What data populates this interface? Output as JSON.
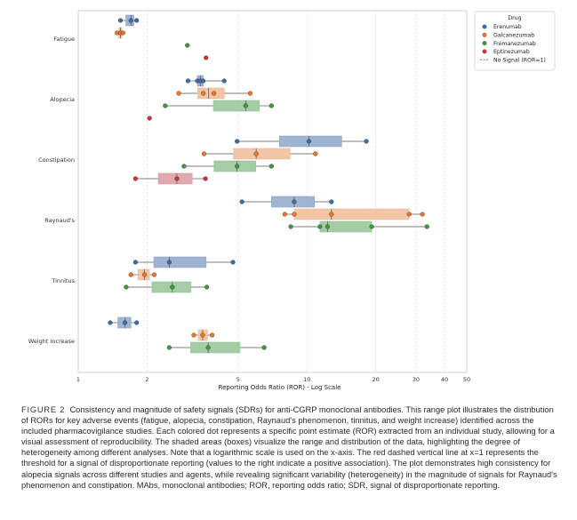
{
  "caption": {
    "label": "FIGURE 2",
    "text": "Consistency and magnitude of safety signals (SDRs) for anti-CGRP monoclonal antibodies. This range plot illustrates the distribution of RORs for key adverse events (fatigue, alopecia, constipation, Raynaud's phenomenon, tinnitus, and weight increase) identified across the included pharmacovigilance studies. Each colored dot represents a specific point estimate (ROR) extracted from an individual study, allowing for a visual assessment of reproducibility. The shaded areas (boxes) visualize the range and distribution of the data, highlighting the degree of heterogeneity among different analyses. Note that a logarithmic scale is used on the x-axis. The red dashed vertical line at x=1 represents the threshold for a signal of disproportionate reporting (values to the right indicate a positive association). The plot demonstrates high consistency for alopecia signals across different studies and agents, while revealing significant variability (heterogeneity) in the magnitude of signals for Raynaud's phenomenon and constipation. MAbs, monoclonal antibodies; ROR, reporting odds ratio; SDR, signal of disproportionate reporting."
  },
  "chart_data": {
    "type": "range-box-strip",
    "xscale": "log",
    "xlim": [
      1,
      50
    ],
    "xticks": [
      1,
      2,
      5,
      10,
      20,
      30,
      40,
      50
    ],
    "xlabel": "Reporting Odds Ratio (ROR) - Log Scale",
    "legend": {
      "title": "Drug",
      "position": "top-right",
      "entries": [
        {
          "label": "Erenumab",
          "color": "#3b6fa8"
        },
        {
          "label": "Galcanezumab",
          "color": "#e9782a"
        },
        {
          "label": "Fremanezumab",
          "color": "#3f9a3f"
        },
        {
          "label": "Eptinezumab",
          "color": "#d13434"
        },
        {
          "label": "No Signal (ROR=1)",
          "color": "#d13434",
          "style": "dashed"
        }
      ]
    },
    "drug_colors": {
      "Erenumab": {
        "point": "#3b6fa8",
        "box": "#8ea7c8"
      },
      "Galcanezumab": {
        "point": "#e9782a",
        "box": "#eebb97"
      },
      "Fremanezumab": {
        "point": "#3f9a3f",
        "box": "#94c497"
      },
      "Eptinezumab": {
        "point": "#d13434",
        "box": "#d99aa1"
      }
    },
    "categories": [
      "Fatigue",
      "Alopecia",
      "Constipation",
      "Raynaud's",
      "Tinnitus",
      "Weight Increase"
    ],
    "groups": [
      {
        "category": "Fatigue",
        "drug": "Erenumab",
        "values": [
          1.53,
          1.7,
          1.8
        ]
      },
      {
        "category": "Fatigue",
        "drug": "Galcanezumab",
        "values": [
          1.48,
          1.53,
          1.57
        ]
      },
      {
        "category": "Fatigue",
        "drug": "Fremanezumab",
        "values": [
          3.0
        ]
      },
      {
        "category": "Fatigue",
        "drug": "Eptinezumab",
        "values": [
          3.62
        ]
      },
      {
        "category": "Alopecia",
        "drug": "Erenumab",
        "values": [
          3.02,
          3.32,
          3.42,
          3.52,
          4.35
        ]
      },
      {
        "category": "Alopecia",
        "drug": "Galcanezumab",
        "values": [
          2.75,
          3.52,
          3.92,
          5.65
        ]
      },
      {
        "category": "Alopecia",
        "drug": "Fremanezumab",
        "values": [
          2.4,
          5.4,
          7.0
        ]
      },
      {
        "category": "Alopecia",
        "drug": "Eptinezumab",
        "values": [
          2.05
        ]
      },
      {
        "category": "Constipation",
        "drug": "Erenumab",
        "values": [
          4.95,
          10.2,
          18.2
        ]
      },
      {
        "category": "Constipation",
        "drug": "Galcanezumab",
        "values": [
          3.55,
          6.0,
          10.9
        ]
      },
      {
        "category": "Constipation",
        "drug": "Fremanezumab",
        "values": [
          2.9,
          4.95,
          7.0
        ]
      },
      {
        "category": "Constipation",
        "drug": "Eptinezumab",
        "values": [
          1.78,
          2.7,
          3.6
        ]
      },
      {
        "category": "Raynaud's",
        "drug": "Erenumab",
        "values": [
          5.2,
          8.8,
          12.8
        ]
      },
      {
        "category": "Raynaud's",
        "drug": "Galcanezumab",
        "values": [
          8.0,
          8.8,
          12.8,
          28.0,
          32.0
        ]
      },
      {
        "category": "Raynaud's",
        "drug": "Fremanezumab",
        "values": [
          8.5,
          11.4,
          12.3,
          19.2,
          33.5
        ]
      },
      {
        "category": "Tinnitus",
        "drug": "Erenumab",
        "values": [
          1.78,
          2.5,
          4.75
        ]
      },
      {
        "category": "Tinnitus",
        "drug": "Galcanezumab",
        "values": [
          1.7,
          1.95,
          2.15
        ]
      },
      {
        "category": "Tinnitus",
        "drug": "Fremanezumab",
        "values": [
          1.62,
          2.58,
          3.65
        ]
      },
      {
        "category": "Weight Increase",
        "drug": "Erenumab",
        "values": [
          1.38,
          1.6,
          1.8
        ]
      },
      {
        "category": "Weight Increase",
        "drug": "Galcanezumab",
        "values": [
          3.2,
          3.5,
          3.85
        ]
      },
      {
        "category": "Weight Increase",
        "drug": "Fremanezumab",
        "values": [
          2.5,
          3.7,
          6.5
        ]
      }
    ]
  }
}
